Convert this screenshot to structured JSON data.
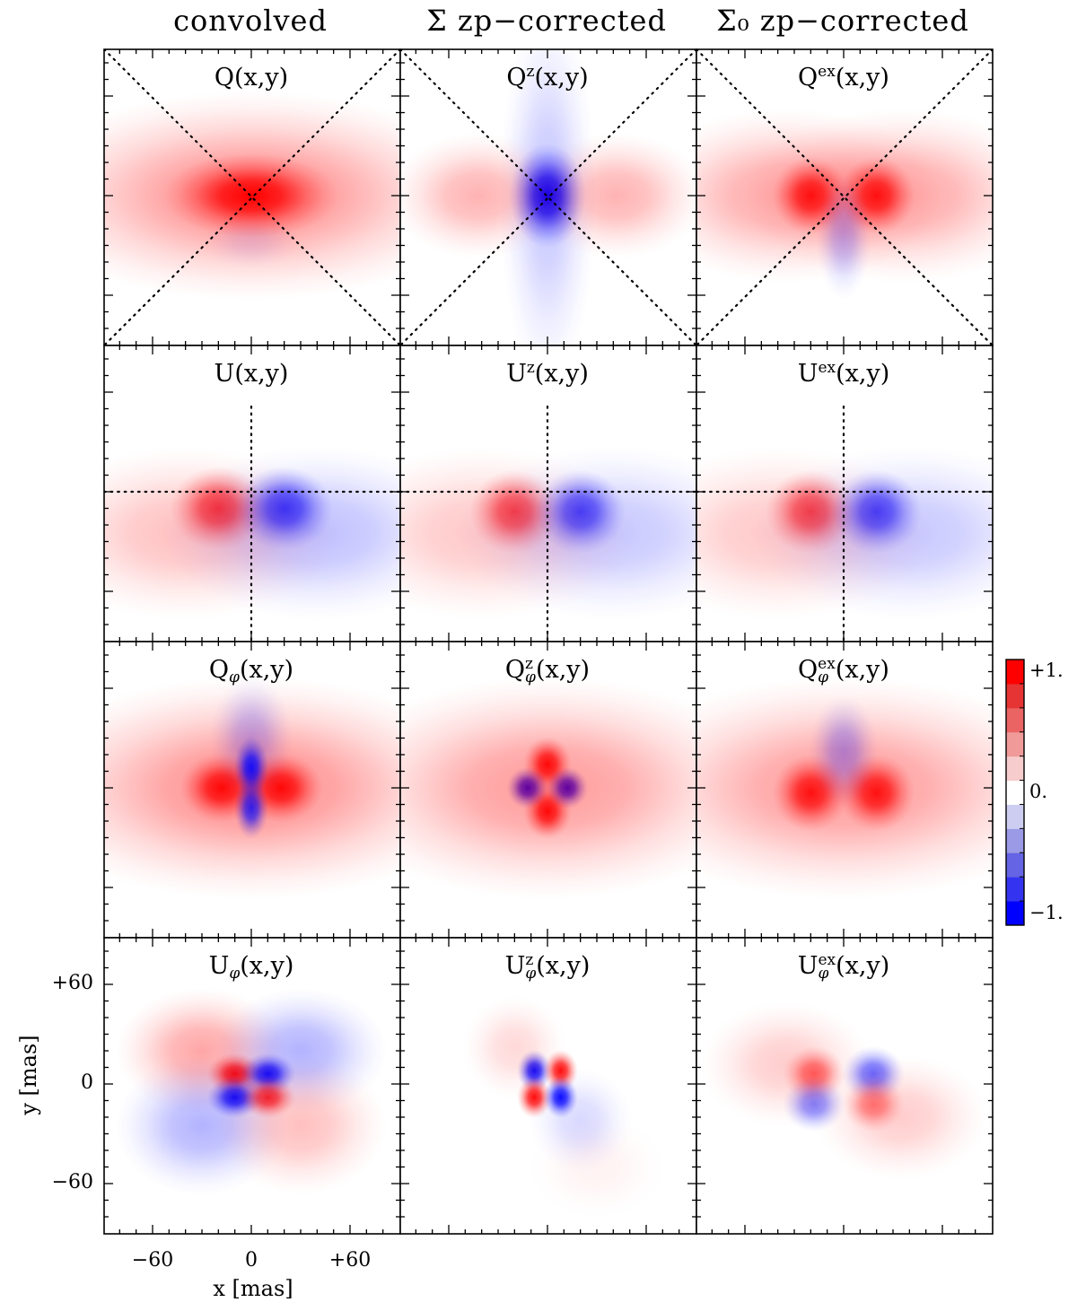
{
  "chart_data": {
    "type": "heatmap",
    "layout": "4 rows x 3 columns of 2-D maps with a shared colorbar",
    "column_titles": [
      "convolved",
      "Σ zp−corrected",
      "Σ₀ zp−corrected"
    ],
    "panels": [
      {
        "row": 0,
        "col": 0,
        "base": "Q",
        "sup": "",
        "sub": "",
        "args": "(x,y)",
        "overlay": "diagonals",
        "blobs": [
          {
            "x": 0,
            "y": 0,
            "a": 1.0,
            "sx": 25,
            "sy": 12
          },
          {
            "x": 0,
            "y": 0,
            "a": 0.45,
            "sx": 70,
            "sy": 30
          },
          {
            "x": 0,
            "y": -28,
            "a": -0.08,
            "sx": 14,
            "sy": 8
          }
        ]
      },
      {
        "row": 0,
        "col": 1,
        "base": "Q",
        "sup": "z",
        "sub": "",
        "args": "(x,y)",
        "overlay": "diagonals",
        "blobs": [
          {
            "x": 0,
            "y": 0,
            "a": -1.0,
            "sx": 11,
            "sy": 15
          },
          {
            "x": 0,
            "y": 0,
            "a": -0.22,
            "sx": 14,
            "sy": 55
          },
          {
            "x": -42,
            "y": 0,
            "a": 0.3,
            "sx": 26,
            "sy": 18
          },
          {
            "x": 42,
            "y": 0,
            "a": 0.3,
            "sx": 26,
            "sy": 18
          }
        ]
      },
      {
        "row": 0,
        "col": 2,
        "base": "Q",
        "sup": "ex",
        "sub": "",
        "args": "(x,y)",
        "overlay": "diagonals",
        "blobs": [
          {
            "x": -20,
            "y": 0,
            "a": 0.9,
            "sx": 11,
            "sy": 11
          },
          {
            "x": 20,
            "y": 0,
            "a": 0.9,
            "sx": 11,
            "sy": 11
          },
          {
            "x": -35,
            "y": 0,
            "a": 0.35,
            "sx": 45,
            "sy": 25
          },
          {
            "x": 35,
            "y": 0,
            "a": 0.35,
            "sx": 45,
            "sy": 25
          },
          {
            "x": 0,
            "y": -25,
            "a": -0.25,
            "sx": 8,
            "sy": 18
          }
        ]
      },
      {
        "row": 1,
        "col": 0,
        "base": "U",
        "sup": "",
        "sub": "",
        "args": "(x,y)",
        "overlay": "cross",
        "blobs": [
          {
            "x": -20,
            "y": -10,
            "a": 0.75,
            "sx": 14,
            "sy": 12
          },
          {
            "x": 20,
            "y": -10,
            "a": -0.75,
            "sx": 14,
            "sy": 12
          },
          {
            "x": -40,
            "y": -25,
            "a": 0.25,
            "sx": 45,
            "sy": 25
          },
          {
            "x": 40,
            "y": -25,
            "a": -0.25,
            "sx": 45,
            "sy": 25
          }
        ]
      },
      {
        "row": 1,
        "col": 1,
        "base": "U",
        "sup": "z",
        "sub": "",
        "args": "(x,y)",
        "overlay": "cross",
        "blobs": [
          {
            "x": -20,
            "y": -12,
            "a": 0.7,
            "sx": 13,
            "sy": 12
          },
          {
            "x": 20,
            "y": -12,
            "a": -0.7,
            "sx": 13,
            "sy": 12
          },
          {
            "x": -40,
            "y": -25,
            "a": 0.22,
            "sx": 45,
            "sy": 25
          },
          {
            "x": 40,
            "y": -25,
            "a": -0.22,
            "sx": 45,
            "sy": 25
          }
        ]
      },
      {
        "row": 1,
        "col": 2,
        "base": "U",
        "sup": "ex",
        "sub": "",
        "args": "(x,y)",
        "overlay": "cross",
        "blobs": [
          {
            "x": -20,
            "y": -12,
            "a": 0.7,
            "sx": 13,
            "sy": 12
          },
          {
            "x": 20,
            "y": -12,
            "a": -0.7,
            "sx": 13,
            "sy": 12
          },
          {
            "x": -40,
            "y": -25,
            "a": 0.22,
            "sx": 45,
            "sy": 25
          },
          {
            "x": 40,
            "y": -25,
            "a": -0.22,
            "sx": 45,
            "sy": 25
          }
        ]
      },
      {
        "row": 2,
        "col": 0,
        "base": "Q",
        "sup": "",
        "sub": "φ",
        "args": "(x,y)",
        "overlay": "none",
        "blobs": [
          {
            "x": -18,
            "y": 0,
            "a": 0.95,
            "sx": 12,
            "sy": 10
          },
          {
            "x": 18,
            "y": 0,
            "a": 0.95,
            "sx": 12,
            "sy": 10
          },
          {
            "x": 0,
            "y": 0,
            "a": 0.45,
            "sx": 70,
            "sy": 32
          },
          {
            "x": 0,
            "y": 12,
            "a": -0.9,
            "sx": 5,
            "sy": 9
          },
          {
            "x": 0,
            "y": -12,
            "a": -0.8,
            "sx": 5,
            "sy": 9
          },
          {
            "x": 0,
            "y": 30,
            "a": -0.25,
            "sx": 12,
            "sy": 18
          }
        ]
      },
      {
        "row": 2,
        "col": 1,
        "base": "Q",
        "sup": "z",
        "sub": "φ",
        "args": "(x,y)",
        "overlay": "none",
        "blobs": [
          {
            "x": 0,
            "y": 14,
            "a": 0.95,
            "sx": 7,
            "sy": 8
          },
          {
            "x": 0,
            "y": -14,
            "a": 0.95,
            "sx": 7,
            "sy": 8
          },
          {
            "x": -12,
            "y": 0,
            "a": -1.0,
            "sx": 6,
            "sy": 6
          },
          {
            "x": 12,
            "y": 0,
            "a": -1.0,
            "sx": 6,
            "sy": 6
          },
          {
            "x": 0,
            "y": 0,
            "a": 0.4,
            "sx": 65,
            "sy": 32
          }
        ]
      },
      {
        "row": 2,
        "col": 2,
        "base": "Q",
        "sup": "ex",
        "sub": "φ",
        "args": "(x,y)",
        "overlay": "none",
        "blobs": [
          {
            "x": -20,
            "y": -3,
            "a": 0.9,
            "sx": 11,
            "sy": 11
          },
          {
            "x": 20,
            "y": -3,
            "a": 0.9,
            "sx": 11,
            "sy": 11
          },
          {
            "x": 0,
            "y": 0,
            "a": 0.4,
            "sx": 70,
            "sy": 32
          },
          {
            "x": 0,
            "y": 22,
            "a": -0.3,
            "sx": 10,
            "sy": 16
          }
        ]
      },
      {
        "row": 3,
        "col": 0,
        "base": "U",
        "sup": "",
        "sub": "φ",
        "args": "(x,y)",
        "overlay": "none",
        "blobs": [
          {
            "x": -10,
            "y": 6,
            "a": 0.95,
            "sx": 8,
            "sy": 6
          },
          {
            "x": 10,
            "y": 6,
            "a": -0.95,
            "sx": 8,
            "sy": 6
          },
          {
            "x": -10,
            "y": -8,
            "a": -0.95,
            "sx": 8,
            "sy": 6
          },
          {
            "x": 10,
            "y": -8,
            "a": 0.85,
            "sx": 8,
            "sy": 6
          },
          {
            "x": -30,
            "y": 20,
            "a": 0.35,
            "sx": 25,
            "sy": 18
          },
          {
            "x": 30,
            "y": 20,
            "a": -0.3,
            "sx": 25,
            "sy": 18
          },
          {
            "x": -30,
            "y": -25,
            "a": -0.3,
            "sx": 25,
            "sy": 20
          },
          {
            "x": 30,
            "y": -25,
            "a": 0.25,
            "sx": 25,
            "sy": 20
          }
        ]
      },
      {
        "row": 3,
        "col": 1,
        "base": "U",
        "sup": "z",
        "sub": "φ",
        "args": "(x,y)",
        "overlay": "none",
        "blobs": [
          {
            "x": -8,
            "y": 8,
            "a": -0.95,
            "sx": 5,
            "sy": 6
          },
          {
            "x": 8,
            "y": 8,
            "a": 0.95,
            "sx": 5,
            "sy": 6
          },
          {
            "x": -8,
            "y": -8,
            "a": 0.95,
            "sx": 5,
            "sy": 6
          },
          {
            "x": 8,
            "y": -8,
            "a": -0.95,
            "sx": 5,
            "sy": 6
          },
          {
            "x": -20,
            "y": 22,
            "a": 0.15,
            "sx": 15,
            "sy": 15
          },
          {
            "x": 20,
            "y": -22,
            "a": -0.15,
            "sx": 15,
            "sy": 15
          },
          {
            "x": 30,
            "y": -50,
            "a": 0.05,
            "sx": 20,
            "sy": 15
          }
        ]
      },
      {
        "row": 3,
        "col": 2,
        "base": "U",
        "sup": "ex",
        "sub": "φ",
        "args": "(x,y)",
        "overlay": "none",
        "blobs": [
          {
            "x": -18,
            "y": 6,
            "a": 0.6,
            "sx": 9,
            "sy": 8
          },
          {
            "x": 18,
            "y": 6,
            "a": -0.6,
            "sx": 9,
            "sy": 8
          },
          {
            "x": -18,
            "y": -12,
            "a": -0.5,
            "sx": 9,
            "sy": 8
          },
          {
            "x": 18,
            "y": -12,
            "a": 0.5,
            "sx": 9,
            "sy": 8
          },
          {
            "x": -35,
            "y": 12,
            "a": 0.2,
            "sx": 25,
            "sy": 18
          },
          {
            "x": 35,
            "y": -20,
            "a": 0.2,
            "sx": 25,
            "sy": 18
          }
        ]
      }
    ],
    "x_axis": {
      "label": "x [mas]",
      "range": [
        -88,
        88
      ],
      "ticks": [
        -60,
        0,
        60
      ],
      "tick_labels": [
        "−60",
        "0",
        "+60"
      ]
    },
    "y_axis": {
      "label": "y [mas]",
      "range": [
        -88,
        88
      ],
      "ticks": [
        -60,
        0,
        60
      ],
      "tick_labels": [
        "−60",
        "0",
        "+60"
      ]
    },
    "colorbar": {
      "range": [
        -1,
        1
      ],
      "levels": 10,
      "colors": [
        "#0000ff",
        "#3333f0",
        "#6464e4",
        "#9a9ae6",
        "#cdcdf2",
        "#ffffff",
        "#f6cccc",
        "#f09a9a",
        "#ea6464",
        "#e63333",
        "#ff0000"
      ],
      "labels": [
        "+1.",
        "0.",
        "−1."
      ]
    },
    "colormap": {
      "negative": "#0000ff",
      "zero": "#ffffff",
      "positive": "#ff0000"
    },
    "overlay_line_color": "#000000"
  }
}
